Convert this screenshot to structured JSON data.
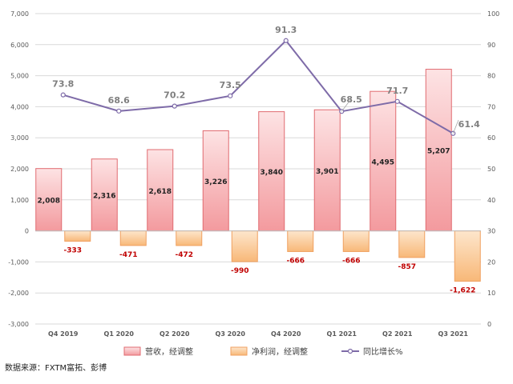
{
  "chart_data": {
    "type": "bar",
    "categories": [
      "Q4 2019",
      "Q1 2020",
      "Q2 2020",
      "Q3 2020",
      "Q4 2020",
      "Q1 2021",
      "Q2 2021",
      "Q3 2021"
    ],
    "series": [
      {
        "name": "营收，经调整",
        "kind": "bar",
        "axis": "left",
        "values": [
          2008,
          2316,
          2618,
          3226,
          3840,
          3901,
          4495,
          5207
        ],
        "labels": [
          "2,008",
          "2,316",
          "2,618",
          "3,226",
          "3,840",
          "3,901",
          "4,495",
          "5,207"
        ],
        "color": "#f4a5a8",
        "border": "#e06b70"
      },
      {
        "name": "净利润，经调整",
        "kind": "bar",
        "axis": "left",
        "values": [
          -333,
          -471,
          -472,
          -990,
          -666,
          -666,
          -857,
          -1622
        ],
        "labels": [
          "-333",
          "-471",
          "-472",
          "-990",
          "-666",
          "-666",
          "-857",
          "-1,622"
        ],
        "color": "#fcc796",
        "border": "#f0a060"
      },
      {
        "name": "同比增长%",
        "kind": "line",
        "axis": "right",
        "values": [
          73.8,
          68.6,
          70.2,
          73.5,
          91.3,
          68.5,
          71.7,
          61.4
        ],
        "labels": [
          "73.8",
          "68.6",
          "70.2",
          "73.5",
          "91.3",
          "68.5",
          "71.7",
          "61.4"
        ],
        "color": "#7e6ba8"
      }
    ],
    "left_axis": {
      "ylim": [
        -3000,
        7000
      ],
      "ticks": [
        -3000,
        -2000,
        -1000,
        0,
        1000,
        2000,
        3000,
        4000,
        5000,
        6000,
        7000
      ],
      "tick_labels": [
        "-3,000",
        "-2,000",
        "-1,000",
        "0",
        "1,000",
        "2,000",
        "3,000",
        "4,000",
        "5,000",
        "6,000",
        "7,000"
      ]
    },
    "right_axis": {
      "ylim": [
        0,
        100
      ],
      "ticks": [
        0,
        10,
        20,
        30,
        40,
        50,
        60,
        70,
        80,
        90,
        100
      ],
      "tick_labels": [
        "0",
        "10",
        "20",
        "30",
        "40",
        "50",
        "60",
        "70",
        "80",
        "90",
        "100"
      ]
    },
    "grid": true,
    "legend_position": "bottom",
    "value_label_colors": {
      "revenue": "#222222",
      "net_profit": "#c00000",
      "growth": "#7f7f7f"
    }
  },
  "source_note": "数据来源：FXTM富拓、彭博"
}
